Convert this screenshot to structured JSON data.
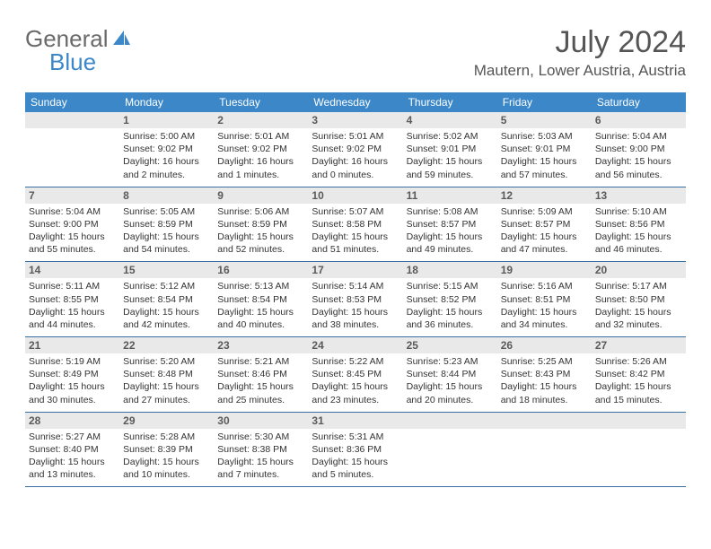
{
  "logo": {
    "part1": "General",
    "part2": "Blue",
    "part1_color": "#6a6a6a",
    "part2_color": "#3b87c8",
    "sail_color": "#3b87c8"
  },
  "title": "July 2024",
  "location": "Mautern, Lower Austria, Austria",
  "colors": {
    "header_bg": "#3b87c8",
    "header_text": "#ffffff",
    "daynum_bg": "#e9e9e9",
    "daynum_text": "#5a5a5a",
    "rule": "#3b6fa3",
    "body_text": "#333333"
  },
  "fonts": {
    "title_size": 34,
    "location_size": 17,
    "header_size": 12,
    "daynum_size": 12,
    "body_size": 10.5
  },
  "day_headers": [
    "Sunday",
    "Monday",
    "Tuesday",
    "Wednesday",
    "Thursday",
    "Friday",
    "Saturday"
  ],
  "start_offset": 1,
  "days": [
    {
      "n": 1,
      "sunrise": "5:00 AM",
      "sunset": "9:02 PM",
      "daylight": "16 hours and 2 minutes."
    },
    {
      "n": 2,
      "sunrise": "5:01 AM",
      "sunset": "9:02 PM",
      "daylight": "16 hours and 1 minutes."
    },
    {
      "n": 3,
      "sunrise": "5:01 AM",
      "sunset": "9:02 PM",
      "daylight": "16 hours and 0 minutes."
    },
    {
      "n": 4,
      "sunrise": "5:02 AM",
      "sunset": "9:01 PM",
      "daylight": "15 hours and 59 minutes."
    },
    {
      "n": 5,
      "sunrise": "5:03 AM",
      "sunset": "9:01 PM",
      "daylight": "15 hours and 57 minutes."
    },
    {
      "n": 6,
      "sunrise": "5:04 AM",
      "sunset": "9:00 PM",
      "daylight": "15 hours and 56 minutes."
    },
    {
      "n": 7,
      "sunrise": "5:04 AM",
      "sunset": "9:00 PM",
      "daylight": "15 hours and 55 minutes."
    },
    {
      "n": 8,
      "sunrise": "5:05 AM",
      "sunset": "8:59 PM",
      "daylight": "15 hours and 54 minutes."
    },
    {
      "n": 9,
      "sunrise": "5:06 AM",
      "sunset": "8:59 PM",
      "daylight": "15 hours and 52 minutes."
    },
    {
      "n": 10,
      "sunrise": "5:07 AM",
      "sunset": "8:58 PM",
      "daylight": "15 hours and 51 minutes."
    },
    {
      "n": 11,
      "sunrise": "5:08 AM",
      "sunset": "8:57 PM",
      "daylight": "15 hours and 49 minutes."
    },
    {
      "n": 12,
      "sunrise": "5:09 AM",
      "sunset": "8:57 PM",
      "daylight": "15 hours and 47 minutes."
    },
    {
      "n": 13,
      "sunrise": "5:10 AM",
      "sunset": "8:56 PM",
      "daylight": "15 hours and 46 minutes."
    },
    {
      "n": 14,
      "sunrise": "5:11 AM",
      "sunset": "8:55 PM",
      "daylight": "15 hours and 44 minutes."
    },
    {
      "n": 15,
      "sunrise": "5:12 AM",
      "sunset": "8:54 PM",
      "daylight": "15 hours and 42 minutes."
    },
    {
      "n": 16,
      "sunrise": "5:13 AM",
      "sunset": "8:54 PM",
      "daylight": "15 hours and 40 minutes."
    },
    {
      "n": 17,
      "sunrise": "5:14 AM",
      "sunset": "8:53 PM",
      "daylight": "15 hours and 38 minutes."
    },
    {
      "n": 18,
      "sunrise": "5:15 AM",
      "sunset": "8:52 PM",
      "daylight": "15 hours and 36 minutes."
    },
    {
      "n": 19,
      "sunrise": "5:16 AM",
      "sunset": "8:51 PM",
      "daylight": "15 hours and 34 minutes."
    },
    {
      "n": 20,
      "sunrise": "5:17 AM",
      "sunset": "8:50 PM",
      "daylight": "15 hours and 32 minutes."
    },
    {
      "n": 21,
      "sunrise": "5:19 AM",
      "sunset": "8:49 PM",
      "daylight": "15 hours and 30 minutes."
    },
    {
      "n": 22,
      "sunrise": "5:20 AM",
      "sunset": "8:48 PM",
      "daylight": "15 hours and 27 minutes."
    },
    {
      "n": 23,
      "sunrise": "5:21 AM",
      "sunset": "8:46 PM",
      "daylight": "15 hours and 25 minutes."
    },
    {
      "n": 24,
      "sunrise": "5:22 AM",
      "sunset": "8:45 PM",
      "daylight": "15 hours and 23 minutes."
    },
    {
      "n": 25,
      "sunrise": "5:23 AM",
      "sunset": "8:44 PM",
      "daylight": "15 hours and 20 minutes."
    },
    {
      "n": 26,
      "sunrise": "5:25 AM",
      "sunset": "8:43 PM",
      "daylight": "15 hours and 18 minutes."
    },
    {
      "n": 27,
      "sunrise": "5:26 AM",
      "sunset": "8:42 PM",
      "daylight": "15 hours and 15 minutes."
    },
    {
      "n": 28,
      "sunrise": "5:27 AM",
      "sunset": "8:40 PM",
      "daylight": "15 hours and 13 minutes."
    },
    {
      "n": 29,
      "sunrise": "5:28 AM",
      "sunset": "8:39 PM",
      "daylight": "15 hours and 10 minutes."
    },
    {
      "n": 30,
      "sunrise": "5:30 AM",
      "sunset": "8:38 PM",
      "daylight": "15 hours and 7 minutes."
    },
    {
      "n": 31,
      "sunrise": "5:31 AM",
      "sunset": "8:36 PM",
      "daylight": "15 hours and 5 minutes."
    }
  ],
  "labels": {
    "sunrise": "Sunrise:",
    "sunset": "Sunset:",
    "daylight": "Daylight:"
  }
}
